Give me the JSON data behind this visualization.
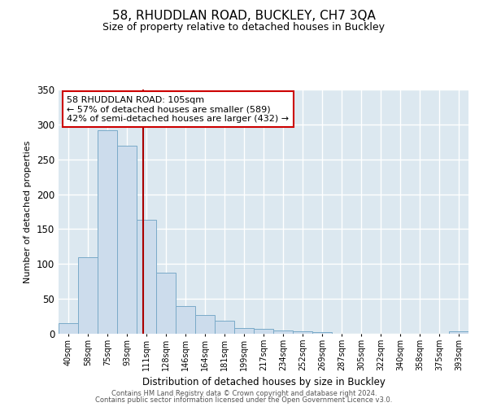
{
  "title": "58, RHUDDLAN ROAD, BUCKLEY, CH7 3QA",
  "subtitle": "Size of property relative to detached houses in Buckley",
  "xlabel": "Distribution of detached houses by size in Buckley",
  "ylabel": "Number of detached properties",
  "bar_labels": [
    "40sqm",
    "58sqm",
    "75sqm",
    "93sqm",
    "111sqm",
    "128sqm",
    "146sqm",
    "164sqm",
    "181sqm",
    "199sqm",
    "217sqm",
    "234sqm",
    "252sqm",
    "269sqm",
    "287sqm",
    "305sqm",
    "322sqm",
    "340sqm",
    "358sqm",
    "375sqm",
    "393sqm"
  ],
  "bar_values": [
    15,
    110,
    292,
    270,
    163,
    87,
    40,
    27,
    19,
    8,
    7,
    5,
    3,
    2,
    0,
    0,
    0,
    0,
    0,
    0,
    3
  ],
  "bar_color": "#ccdcec",
  "bar_edge_color": "#7aaac8",
  "vline_color": "#aa0000",
  "vline_x": 3.85,
  "annotation_title": "58 RHUDDLAN ROAD: 105sqm",
  "annotation_line1": "← 57% of detached houses are smaller (589)",
  "annotation_line2": "42% of semi-detached houses are larger (432) →",
  "annotation_box_color": "#ffffff",
  "annotation_box_edge": "#cc0000",
  "ylim": [
    0,
    350
  ],
  "yticks": [
    0,
    50,
    100,
    150,
    200,
    250,
    300,
    350
  ],
  "footer1": "Contains HM Land Registry data © Crown copyright and database right 2024.",
  "footer2": "Contains public sector information licensed under the Open Government Licence v3.0."
}
